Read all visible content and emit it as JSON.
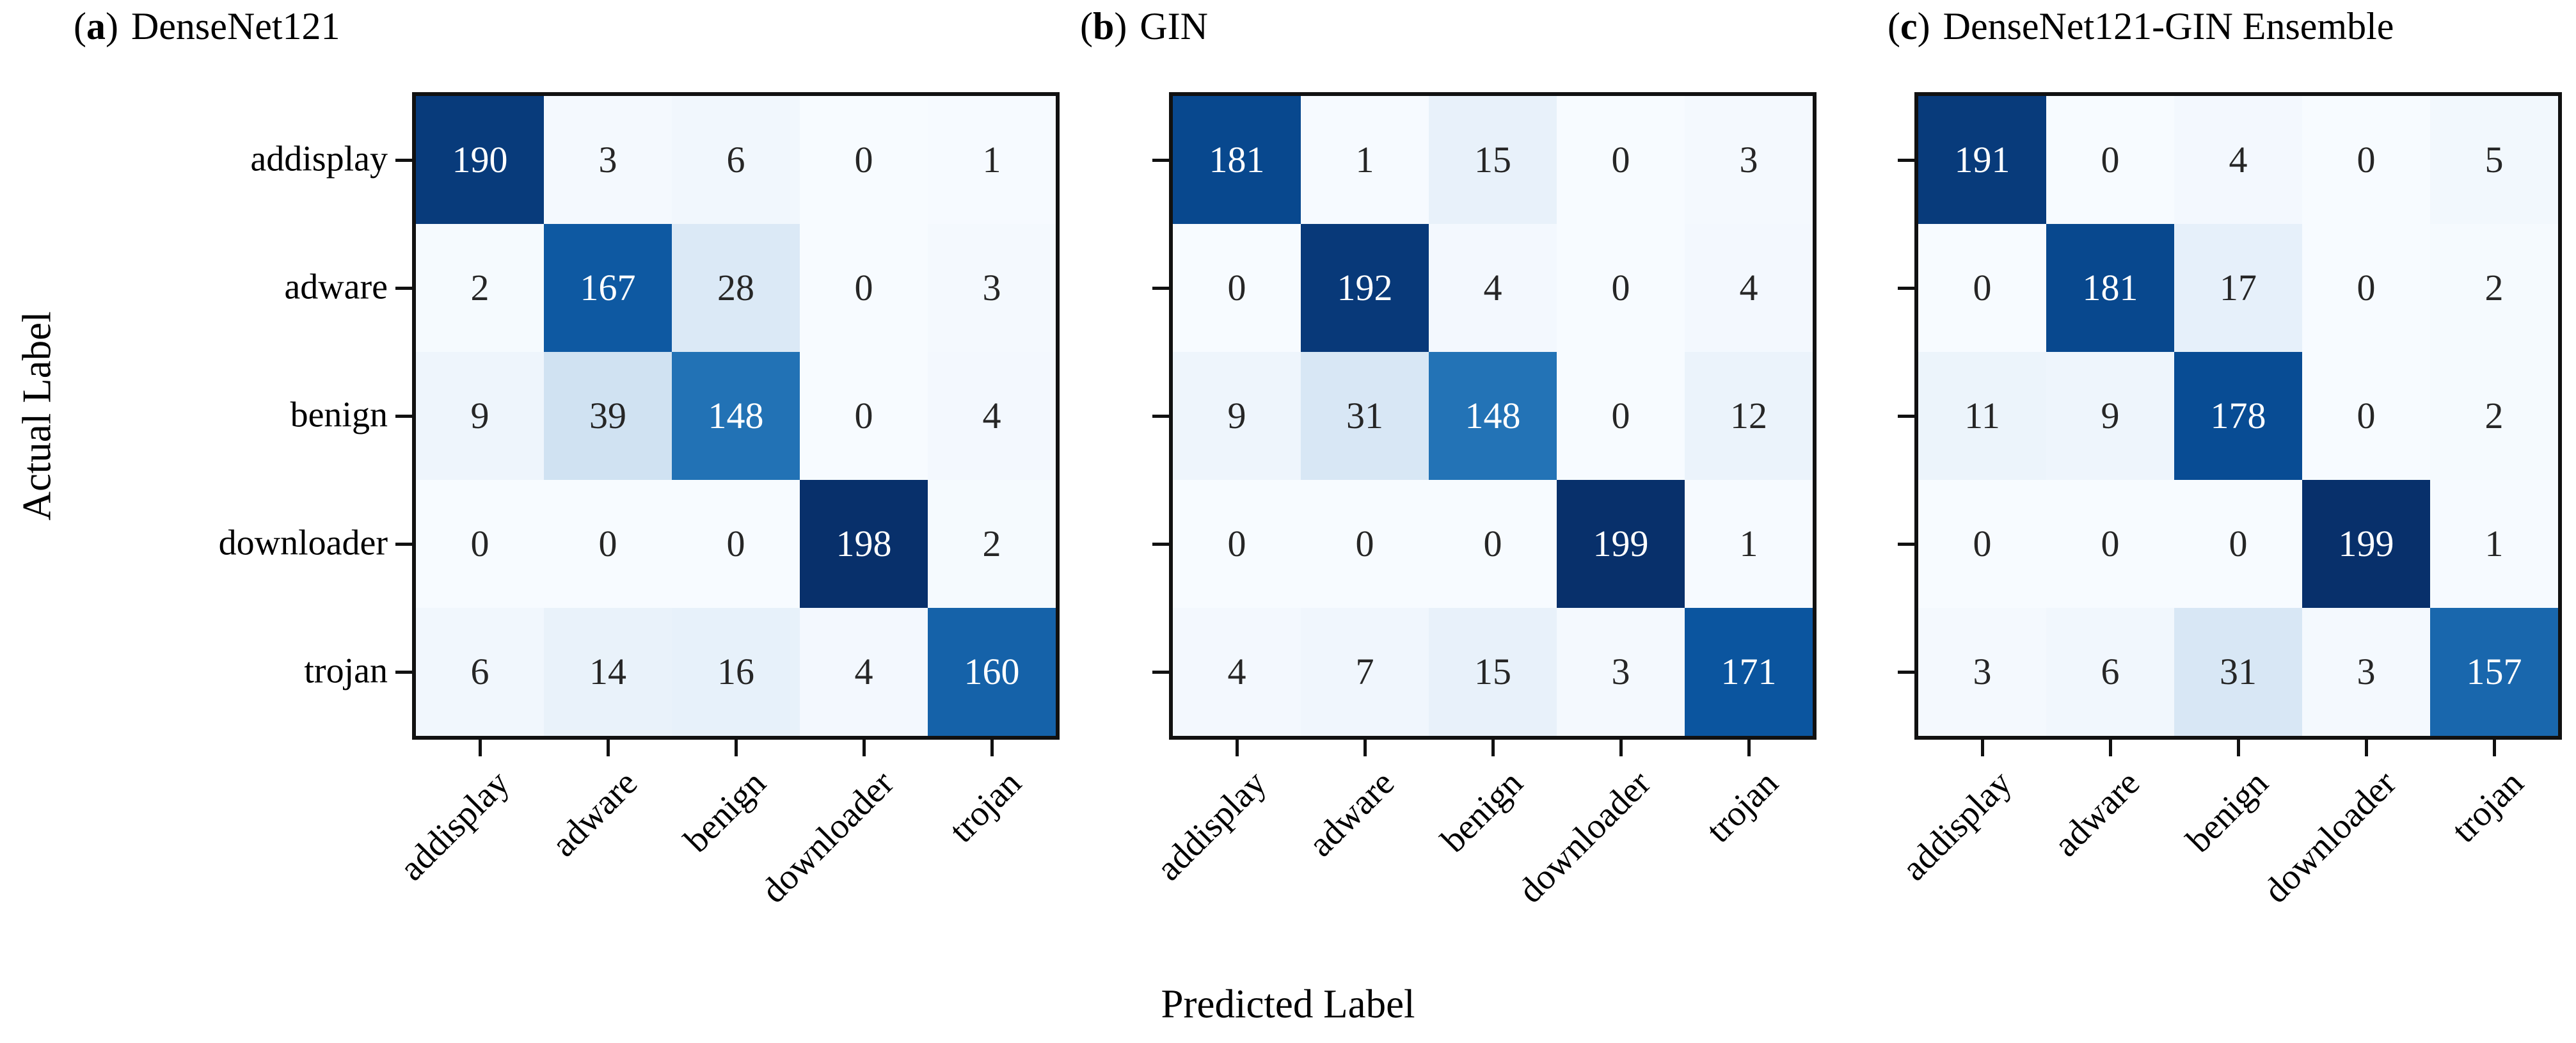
{
  "figure": {
    "xlabel": "Predicted Label",
    "ylabel": "Actual Label",
    "background": "#ffffff"
  },
  "classes": [
    "addisplay",
    "adware",
    "benign",
    "downloader",
    "trojan"
  ],
  "colors": {
    "spine": "#111111",
    "tick": "#111111",
    "label_text": "#000000",
    "cell_text_dark": "#262626",
    "cell_text_light": "#ffffff",
    "cmap_name": "Blues",
    "cmap_stops": [
      {
        "t": 0.0,
        "hex": "#f7fbff"
      },
      {
        "t": 0.125,
        "hex": "#deebf7"
      },
      {
        "t": 0.25,
        "hex": "#c6dbef"
      },
      {
        "t": 0.375,
        "hex": "#9ecae1"
      },
      {
        "t": 0.5,
        "hex": "#6baed6"
      },
      {
        "t": 0.625,
        "hex": "#4292c6"
      },
      {
        "t": 0.75,
        "hex": "#2171b5"
      },
      {
        "t": 0.875,
        "hex": "#08519c"
      },
      {
        "t": 1.0,
        "hex": "#08306b"
      }
    ]
  },
  "chart_data": [
    {
      "type": "heatmap",
      "index_open": "(",
      "index_letter": "a",
      "index_close": ")",
      "title": "DenseNet121",
      "xlabel": "Predicted Label",
      "ylabel": "Actual Label",
      "x_categories": [
        "addisplay",
        "adware",
        "benign",
        "downloader",
        "trojan"
      ],
      "y_categories": [
        "addisplay",
        "adware",
        "benign",
        "downloader",
        "trojan"
      ],
      "vmin": 0,
      "vmax": 198,
      "matrix": [
        [
          190,
          3,
          6,
          0,
          1
        ],
        [
          2,
          167,
          28,
          0,
          3
        ],
        [
          9,
          39,
          148,
          0,
          4
        ],
        [
          0,
          0,
          0,
          198,
          2
        ],
        [
          6,
          14,
          16,
          4,
          160
        ]
      ]
    },
    {
      "type": "heatmap",
      "index_open": "(",
      "index_letter": "b",
      "index_close": ")",
      "title": "GIN",
      "xlabel": "Predicted Label",
      "ylabel": "Actual Label",
      "x_categories": [
        "addisplay",
        "adware",
        "benign",
        "downloader",
        "trojan"
      ],
      "y_categories": [
        "addisplay",
        "adware",
        "benign",
        "downloader",
        "trojan"
      ],
      "vmin": 0,
      "vmax": 199,
      "matrix": [
        [
          181,
          1,
          15,
          0,
          3
        ],
        [
          0,
          192,
          4,
          0,
          4
        ],
        [
          9,
          31,
          148,
          0,
          12
        ],
        [
          0,
          0,
          0,
          199,
          1
        ],
        [
          4,
          7,
          15,
          3,
          171
        ]
      ]
    },
    {
      "type": "heatmap",
      "index_open": "(",
      "index_letter": "c",
      "index_close": ")",
      "title": "DenseNet121-GIN Ensemble",
      "xlabel": "Predicted Label",
      "ylabel": "Actual Label",
      "x_categories": [
        "addisplay",
        "adware",
        "benign",
        "downloader",
        "trojan"
      ],
      "y_categories": [
        "addisplay",
        "adware",
        "benign",
        "downloader",
        "trojan"
      ],
      "vmin": 0,
      "vmax": 199,
      "matrix": [
        [
          191,
          0,
          4,
          0,
          5
        ],
        [
          0,
          181,
          17,
          0,
          2
        ],
        [
          11,
          9,
          178,
          0,
          2
        ],
        [
          0,
          0,
          0,
          199,
          1
        ],
        [
          3,
          6,
          31,
          3,
          157
        ]
      ]
    }
  ]
}
